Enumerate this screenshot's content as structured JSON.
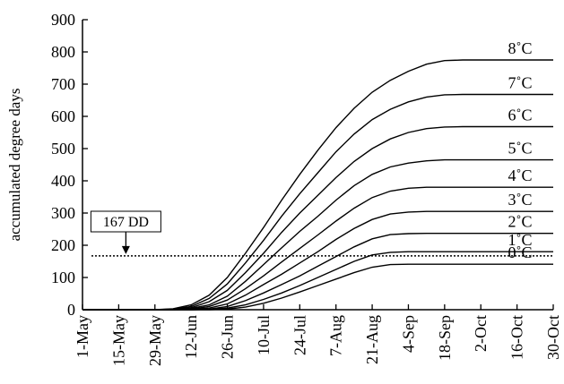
{
  "chart_data": {
    "type": "line",
    "ylabel": "accumulated degree days",
    "xlabel": "",
    "ylim": [
      0,
      900
    ],
    "yticks": [
      0,
      100,
      200,
      300,
      400,
      500,
      600,
      700,
      800,
      900
    ],
    "xlim": [
      "1-May",
      "30-Oct"
    ],
    "xticks": [
      "1-May",
      "15-May",
      "29-May",
      "12-Jun",
      "26-Jun",
      "10-Jul",
      "24-Jul",
      "7-Aug",
      "21-Aug",
      "4-Sep",
      "18-Sep",
      "2-Oct",
      "16-Oct",
      "30-Oct"
    ],
    "grid": false,
    "legend": "none",
    "series_x": [
      "1-May",
      "15-May",
      "29-May",
      "5-Jun",
      "12-Jun",
      "19-Jun",
      "26-Jun",
      "3-Jul",
      "10-Jul",
      "17-Jul",
      "24-Jul",
      "31-Jul",
      "7-Aug",
      "14-Aug",
      "21-Aug",
      "28-Aug",
      "4-Sep",
      "11-Sep",
      "18-Sep",
      "25-Sep",
      "2-Oct",
      "16-Oct",
      "30-Oct"
    ],
    "series": [
      {
        "name": "8˚C",
        "values": [
          0,
          0,
          0,
          3,
          15,
          45,
          100,
          175,
          255,
          340,
          420,
          495,
          565,
          625,
          675,
          712,
          740,
          762,
          773,
          775,
          775,
          775,
          775
        ]
      },
      {
        "name": "7˚C",
        "values": [
          0,
          0,
          0,
          2,
          10,
          35,
          80,
          145,
          215,
          290,
          360,
          425,
          490,
          545,
          590,
          622,
          645,
          660,
          667,
          668,
          668,
          668,
          668
        ]
      },
      {
        "name": "6˚C",
        "values": [
          0,
          0,
          0,
          1,
          6,
          25,
          60,
          115,
          175,
          240,
          300,
          355,
          410,
          460,
          500,
          530,
          550,
          562,
          567,
          568,
          568,
          568,
          568
        ]
      },
      {
        "name": "5˚C",
        "values": [
          0,
          0,
          0,
          0,
          4,
          15,
          42,
          88,
          140,
          192,
          243,
          290,
          340,
          385,
          420,
          443,
          455,
          462,
          465,
          465,
          465,
          465,
          465
        ]
      },
      {
        "name": "4˚C",
        "values": [
          0,
          0,
          0,
          0,
          2,
          10,
          30,
          65,
          105,
          148,
          190,
          232,
          275,
          315,
          348,
          368,
          377,
          380,
          380,
          380,
          380,
          380,
          380
        ]
      },
      {
        "name": "3˚C",
        "values": [
          0,
          0,
          0,
          0,
          1,
          5,
          18,
          45,
          78,
          110,
          145,
          180,
          218,
          252,
          280,
          297,
          303,
          305,
          305,
          305,
          305,
          305,
          305
        ]
      },
      {
        "name": "2˚C",
        "values": [
          0,
          0,
          0,
          0,
          0,
          2,
          10,
          28,
          52,
          78,
          105,
          135,
          165,
          195,
          220,
          233,
          236,
          237,
          237,
          237,
          237,
          237,
          237
        ]
      },
      {
        "name": "1˚C",
        "values": [
          0,
          0,
          0,
          0,
          0,
          1,
          5,
          15,
          32,
          52,
          75,
          100,
          125,
          150,
          170,
          178,
          180,
          180,
          180,
          180,
          180,
          180,
          180
        ]
      },
      {
        "name": "0˚C",
        "values": [
          0,
          0,
          0,
          0,
          0,
          0,
          2,
          8,
          20,
          36,
          55,
          75,
          95,
          115,
          132,
          140,
          141,
          141,
          141,
          141,
          141,
          141,
          141
        ]
      }
    ],
    "threshold": {
      "value": 167,
      "label": "167 DD",
      "style": "dotted",
      "arrow_at": "15-May"
    }
  }
}
